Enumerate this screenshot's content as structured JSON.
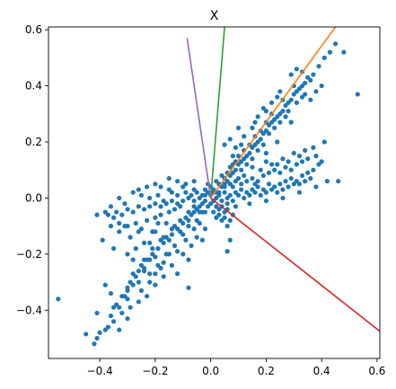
{
  "chart_data": {
    "type": "scatter",
    "title": "X",
    "xlabel": "",
    "ylabel": "",
    "xlim": [
      -0.585,
      0.61
    ],
    "ylim": [
      -0.572,
      0.61
    ],
    "xticks": [
      -0.4,
      -0.2,
      0.0,
      0.2,
      0.4,
      0.6
    ],
    "xtick_labels": [
      "−0.4",
      "−0.2",
      "0.0",
      "0.2",
      "0.4",
      "0.6"
    ],
    "yticks": [
      -0.4,
      -0.2,
      0.0,
      0.2,
      0.4,
      0.6
    ],
    "ytick_labels": [
      "−0.4",
      "−0.2",
      "0.0",
      "0.2",
      "0.4",
      "0.6"
    ],
    "grid": false,
    "legend": "none",
    "scatter_color": "#1f77b4",
    "scatter_points": [
      [
        -0.55,
        -0.36
      ],
      [
        -0.45,
        -0.485
      ],
      [
        -0.42,
        -0.52
      ],
      [
        -0.4,
        -0.48
      ],
      [
        -0.38,
        -0.47
      ],
      [
        -0.36,
        -0.42
      ],
      [
        -0.35,
        -0.39
      ],
      [
        -0.33,
        -0.39
      ],
      [
        -0.32,
        -0.35
      ],
      [
        -0.3,
        -0.33
      ],
      [
        -0.29,
        -0.3
      ],
      [
        -0.27,
        -0.28
      ],
      [
        -0.26,
        -0.26
      ],
      [
        -0.24,
        -0.25
      ],
      [
        -0.22,
        -0.22
      ],
      [
        -0.21,
        -0.2
      ],
      [
        -0.19,
        -0.18
      ],
      [
        -0.17,
        -0.16
      ],
      [
        -0.16,
        -0.14
      ],
      [
        -0.14,
        -0.13
      ],
      [
        -0.12,
        -0.11
      ],
      [
        -0.1,
        -0.09
      ],
      [
        -0.09,
        -0.07
      ],
      [
        -0.07,
        -0.06
      ],
      [
        -0.05,
        -0.04
      ],
      [
        -0.03,
        -0.02
      ],
      [
        -0.31,
        -0.35
      ],
      [
        -0.28,
        -0.31
      ],
      [
        -0.25,
        -0.24
      ],
      [
        -0.23,
        -0.22
      ],
      [
        -0.2,
        -0.21
      ],
      [
        -0.18,
        -0.15
      ],
      [
        -0.15,
        -0.15
      ],
      [
        -0.13,
        -0.1
      ],
      [
        -0.11,
        -0.12
      ],
      [
        -0.08,
        -0.08
      ],
      [
        -0.06,
        -0.05
      ],
      [
        -0.04,
        -0.05
      ],
      [
        -0.34,
        -0.38
      ],
      [
        -0.3,
        -0.36
      ],
      [
        -0.26,
        -0.3
      ],
      [
        -0.22,
        -0.27
      ],
      [
        -0.19,
        -0.24
      ],
      [
        -0.16,
        -0.2
      ],
      [
        -0.13,
        -0.17
      ],
      [
        -0.1,
        -0.13
      ],
      [
        -0.08,
        -0.1
      ],
      [
        -0.05,
        -0.08
      ],
      [
        -0.03,
        -0.05
      ],
      [
        -0.28,
        -0.27
      ],
      [
        -0.24,
        -0.22
      ],
      [
        -0.21,
        -0.18
      ],
      [
        -0.17,
        -0.14
      ],
      [
        -0.14,
        -0.11
      ],
      [
        -0.11,
        -0.08
      ],
      [
        -0.08,
        -0.05
      ],
      [
        -0.06,
        -0.03
      ],
      [
        -0.41,
        -0.06
      ],
      [
        -0.38,
        -0.05
      ],
      [
        -0.35,
        -0.07
      ],
      [
        -0.32,
        -0.06
      ],
      [
        -0.3,
        -0.04
      ],
      [
        -0.28,
        -0.05
      ],
      [
        -0.26,
        -0.03
      ],
      [
        -0.24,
        -0.04
      ],
      [
        -0.22,
        -0.03
      ],
      [
        -0.2,
        -0.02
      ],
      [
        -0.18,
        -0.03
      ],
      [
        -0.16,
        -0.02
      ],
      [
        -0.14,
        -0.01
      ],
      [
        -0.12,
        -0.02
      ],
      [
        -0.1,
        -0.01
      ],
      [
        -0.08,
        0.0
      ],
      [
        -0.06,
        -0.01
      ],
      [
        -0.04,
        0.0
      ],
      [
        -0.02,
        0.01
      ],
      [
        -0.36,
        -0.1
      ],
      [
        -0.33,
        -0.12
      ],
      [
        -0.3,
        -0.1
      ],
      [
        -0.27,
        -0.09
      ],
      [
        -0.25,
        -0.11
      ],
      [
        -0.23,
        -0.08
      ],
      [
        -0.2,
        -0.07
      ],
      [
        -0.18,
        -0.06
      ],
      [
        -0.15,
        -0.05
      ],
      [
        -0.13,
        -0.04
      ],
      [
        -0.11,
        -0.03
      ],
      [
        -0.25,
        0.01
      ],
      [
        -0.22,
        0.0
      ],
      [
        -0.19,
        0.01
      ],
      [
        -0.17,
        -0.01
      ],
      [
        -0.14,
        0.02
      ],
      [
        -0.12,
        0.01
      ],
      [
        -0.09,
        0.02
      ],
      [
        -0.07,
        0.01
      ],
      [
        -0.05,
        0.02
      ],
      [
        -0.03,
        0.01
      ],
      [
        -0.26,
        -0.12
      ],
      [
        -0.29,
        -0.14
      ],
      [
        -0.31,
        -0.1
      ],
      [
        -0.21,
        -0.12
      ],
      [
        -0.24,
        -0.16
      ],
      [
        -0.27,
        -0.18
      ],
      [
        -0.19,
        -0.09
      ],
      [
        -0.23,
        0.04
      ],
      [
        -0.26,
        0.03
      ],
      [
        -0.18,
        0.04
      ],
      [
        -0.15,
        0.03
      ],
      [
        -0.1,
        0.04
      ],
      [
        -0.06,
        0.03
      ],
      [
        -0.33,
        -0.09
      ],
      [
        -0.37,
        -0.06
      ],
      [
        -0.2,
        -0.27
      ],
      [
        -0.17,
        -0.23
      ],
      [
        -0.12,
        -0.19
      ],
      [
        -0.09,
        -0.15
      ],
      [
        -0.06,
        -0.11
      ],
      [
        -0.04,
        -0.09
      ],
      [
        -0.15,
        -0.2
      ],
      [
        -0.18,
        -0.25
      ],
      [
        -0.22,
        -0.3
      ],
      [
        -0.25,
        -0.33
      ],
      [
        -0.35,
        -0.18
      ],
      [
        -0.39,
        -0.15
      ],
      [
        -0.3,
        -0.2
      ],
      [
        -0.22,
        -0.16
      ],
      [
        -0.28,
        -0.22
      ],
      [
        -0.38,
        -0.31
      ],
      [
        -0.3,
        -0.32
      ],
      [
        -0.24,
        -0.26
      ],
      [
        -0.2,
        -0.12
      ],
      [
        -0.16,
        -0.09
      ],
      [
        -0.08,
        -0.22
      ],
      [
        -0.02,
        -0.05
      ],
      [
        -0.01,
        -0.03
      ],
      [
        0.0,
        -0.02
      ],
      [
        0.01,
        -0.01
      ],
      [
        0.0,
        0.01
      ],
      [
        -0.01,
        0.02
      ],
      [
        0.02,
        0.0
      ],
      [
        0.01,
        0.02
      ],
      [
        -0.02,
        0.03
      ],
      [
        0.03,
        0.02
      ],
      [
        0.02,
        0.02
      ],
      [
        0.04,
        0.04
      ],
      [
        0.05,
        0.05
      ],
      [
        0.06,
        0.06
      ],
      [
        0.07,
        0.08
      ],
      [
        0.08,
        0.09
      ],
      [
        0.09,
        0.1
      ],
      [
        0.1,
        0.12
      ],
      [
        0.11,
        0.13
      ],
      [
        0.12,
        0.14
      ],
      [
        0.13,
        0.15
      ],
      [
        0.14,
        0.16
      ],
      [
        0.15,
        0.18
      ],
      [
        0.16,
        0.19
      ],
      [
        0.17,
        0.2
      ],
      [
        0.18,
        0.21
      ],
      [
        0.19,
        0.23
      ],
      [
        0.2,
        0.24
      ],
      [
        0.21,
        0.26
      ],
      [
        0.22,
        0.27
      ],
      [
        0.23,
        0.28
      ],
      [
        0.24,
        0.29
      ],
      [
        0.25,
        0.3
      ],
      [
        0.26,
        0.31
      ],
      [
        0.27,
        0.33
      ],
      [
        0.28,
        0.34
      ],
      [
        0.29,
        0.35
      ],
      [
        0.3,
        0.37
      ],
      [
        0.31,
        0.38
      ],
      [
        0.32,
        0.39
      ],
      [
        0.33,
        0.4
      ],
      [
        0.34,
        0.41
      ],
      [
        0.35,
        0.43
      ],
      [
        0.37,
        0.44
      ],
      [
        0.39,
        0.47
      ],
      [
        0.41,
        0.5
      ],
      [
        0.43,
        0.52
      ],
      [
        0.45,
        0.55
      ],
      [
        0.48,
        0.52
      ],
      [
        0.53,
        0.37
      ],
      [
        0.36,
        0.42
      ],
      [
        0.3,
        0.4
      ],
      [
        0.26,
        0.35
      ],
      [
        0.22,
        0.3
      ],
      [
        0.2,
        0.27
      ],
      [
        0.18,
        0.24
      ],
      [
        0.16,
        0.22
      ],
      [
        0.14,
        0.19
      ],
      [
        0.12,
        0.17
      ],
      [
        0.1,
        0.15
      ],
      [
        0.25,
        0.27
      ],
      [
        0.28,
        0.31
      ],
      [
        0.21,
        0.23
      ],
      [
        0.17,
        0.17
      ],
      [
        0.13,
        0.12
      ],
      [
        0.11,
        0.1
      ],
      [
        0.15,
        0.14
      ],
      [
        0.19,
        0.19
      ],
      [
        0.23,
        0.25
      ],
      [
        0.27,
        0.29
      ],
      [
        0.31,
        0.34
      ],
      [
        0.33,
        0.36
      ],
      [
        0.34,
        0.37
      ],
      [
        0.15,
        0.11
      ],
      [
        0.2,
        0.16
      ],
      [
        0.24,
        0.2
      ],
      [
        0.29,
        0.27
      ],
      [
        0.36,
        0.35
      ],
      [
        0.4,
        0.4
      ],
      [
        0.38,
        0.38
      ],
      [
        0.03,
        0.01
      ],
      [
        0.05,
        0.02
      ],
      [
        0.07,
        0.01
      ],
      [
        0.09,
        0.02
      ],
      [
        0.11,
        0.03
      ],
      [
        0.13,
        0.02
      ],
      [
        0.15,
        0.03
      ],
      [
        0.17,
        0.04
      ],
      [
        0.19,
        0.03
      ],
      [
        0.21,
        0.05
      ],
      [
        0.23,
        0.04
      ],
      [
        0.25,
        0.05
      ],
      [
        0.27,
        0.06
      ],
      [
        0.29,
        0.07
      ],
      [
        0.31,
        0.06
      ],
      [
        0.33,
        0.08
      ],
      [
        0.35,
        0.09
      ],
      [
        0.37,
        0.1
      ],
      [
        0.39,
        0.12
      ],
      [
        0.04,
        -0.01
      ],
      [
        0.06,
        0.0
      ],
      [
        0.08,
        -0.01
      ],
      [
        0.1,
        0.01
      ],
      [
        0.12,
        0.0
      ],
      [
        0.14,
        0.01
      ],
      [
        0.16,
        0.02
      ],
      [
        0.18,
        0.01
      ],
      [
        0.2,
        0.02
      ],
      [
        0.22,
        0.03
      ],
      [
        0.24,
        0.02
      ],
      [
        0.26,
        0.03
      ],
      [
        0.28,
        0.04
      ],
      [
        0.3,
        0.05
      ],
      [
        0.32,
        0.05
      ],
      [
        0.34,
        0.06
      ],
      [
        0.36,
        0.07
      ],
      [
        0.05,
        0.04
      ],
      [
        0.07,
        0.05
      ],
      [
        0.09,
        0.06
      ],
      [
        0.11,
        0.05
      ],
      [
        0.13,
        0.06
      ],
      [
        0.15,
        0.07
      ],
      [
        0.17,
        0.06
      ],
      [
        0.19,
        0.08
      ],
      [
        0.21,
        0.09
      ],
      [
        0.23,
        0.1
      ],
      [
        0.25,
        0.09
      ],
      [
        0.27,
        0.11
      ],
      [
        0.29,
        0.1
      ],
      [
        0.31,
        0.12
      ],
      [
        0.33,
        0.13
      ],
      [
        0.35,
        0.14
      ],
      [
        0.2,
        0.13
      ],
      [
        0.22,
        0.12
      ],
      [
        0.26,
        0.14
      ],
      [
        0.3,
        0.16
      ],
      [
        0.32,
        0.15
      ],
      [
        0.34,
        0.17
      ],
      [
        0.38,
        0.15
      ],
      [
        0.4,
        0.13
      ],
      [
        0.46,
        0.06
      ],
      [
        0.37,
        0.18
      ],
      [
        0.41,
        0.2
      ],
      [
        0.12,
        0.08
      ],
      [
        0.18,
        0.1
      ],
      [
        0.24,
        0.12
      ],
      [
        0.28,
        0.13
      ],
      [
        0.08,
        0.04
      ],
      [
        0.1,
        0.07
      ],
      [
        0.14,
        -0.02
      ],
      [
        0.2,
        -0.01
      ],
      [
        0.26,
        0.0
      ],
      [
        0.32,
        0.02
      ],
      [
        0.38,
        0.04
      ],
      [
        0.42,
        0.06
      ],
      [
        0.16,
        0.05
      ],
      [
        0.06,
        -0.02
      ],
      [
        0.09,
        -0.03
      ],
      [
        0.02,
        -0.03
      ],
      [
        0.03,
        -0.04
      ],
      [
        0.04,
        -0.03
      ],
      [
        0.05,
        -0.05
      ],
      [
        0.06,
        -0.04
      ],
      [
        0.08,
        -0.06
      ],
      [
        0.07,
        -0.08
      ],
      [
        0.05,
        -0.07
      ],
      [
        0.03,
        -0.06
      ],
      [
        0.01,
        -0.05
      ],
      [
        0.04,
        -0.08
      ],
      [
        0.02,
        -0.07
      ],
      [
        0.06,
        -0.1
      ],
      [
        0.07,
        -0.15
      ],
      [
        0.06,
        -0.19
      ],
      [
        -0.08,
        -0.32
      ],
      [
        -0.12,
        -0.27
      ],
      [
        -0.03,
        -0.15
      ],
      [
        0.09,
        0.18
      ],
      [
        0.1,
        0.25
      ],
      [
        0.07,
        0.21
      ],
      [
        0.05,
        0.19
      ],
      [
        0.08,
        0.15
      ],
      [
        0.12,
        0.22
      ],
      [
        0.29,
        0.44
      ],
      [
        0.31,
        0.46
      ],
      [
        0.33,
        0.45
      ],
      [
        0.25,
        0.38
      ],
      [
        0.17,
        0.29
      ],
      [
        0.19,
        0.32
      ],
      [
        0.15,
        0.25
      ],
      [
        0.11,
        0.19
      ],
      [
        0.16,
        0.27
      ],
      [
        0.2,
        0.31
      ],
      [
        0.22,
        0.34
      ],
      [
        0.24,
        0.36
      ],
      [
        0.03,
        0.05
      ],
      [
        -0.01,
        0.05
      ],
      [
        0.0,
        0.04
      ],
      [
        -0.02,
        -0.01
      ],
      [
        -0.04,
        -0.03
      ],
      [
        0.01,
        0.03
      ],
      [
        0.02,
        0.06
      ],
      [
        0.04,
        0.08
      ],
      [
        0.06,
        0.09
      ],
      [
        0.07,
        0.11
      ],
      [
        0.08,
        0.12
      ],
      [
        0.09,
        0.13
      ],
      [
        0.05,
        0.07
      ],
      [
        -0.06,
        0.06
      ],
      [
        -0.09,
        0.05
      ],
      [
        -0.12,
        0.06
      ],
      [
        -0.15,
        0.07
      ],
      [
        -0.2,
        0.05
      ],
      [
        -0.28,
        0.02
      ],
      [
        -0.33,
        0.0
      ],
      [
        -0.36,
        -0.03
      ],
      [
        -0.34,
        -0.05
      ],
      [
        -0.31,
        -0.02
      ],
      [
        -0.05,
        -0.14
      ],
      [
        -0.02,
        -0.11
      ],
      [
        -0.07,
        -0.17
      ],
      [
        -0.1,
        -0.2
      ],
      [
        -0.14,
        -0.24
      ],
      [
        -0.17,
        -0.28
      ],
      [
        -0.2,
        -0.31
      ],
      [
        -0.23,
        -0.35
      ],
      [
        -0.26,
        -0.37
      ],
      [
        -0.29,
        -0.39
      ],
      [
        -0.32,
        -0.41
      ],
      [
        -0.35,
        -0.44
      ],
      [
        -0.37,
        -0.46
      ],
      [
        -0.41,
        -0.5
      ],
      [
        -0.33,
        -0.47
      ],
      [
        -0.3,
        -0.43
      ],
      [
        -0.36,
        -0.34
      ],
      [
        -0.41,
        -0.41
      ]
    ],
    "lines": [
      {
        "color": "#ff7f0e",
        "x": [
          0.0,
          0.45
        ],
        "y": [
          0.0,
          0.61
        ]
      },
      {
        "color": "#2ca02c",
        "x": [
          0.0,
          0.05
        ],
        "y": [
          0.0,
          0.61
        ]
      },
      {
        "color": "#d62728",
        "x": [
          0.0,
          0.61
        ],
        "y": [
          0.0,
          -0.475
        ]
      },
      {
        "color": "#9467bd",
        "x": [
          0.0,
          -0.085
        ],
        "y": [
          0.0,
          0.57
        ]
      }
    ]
  }
}
